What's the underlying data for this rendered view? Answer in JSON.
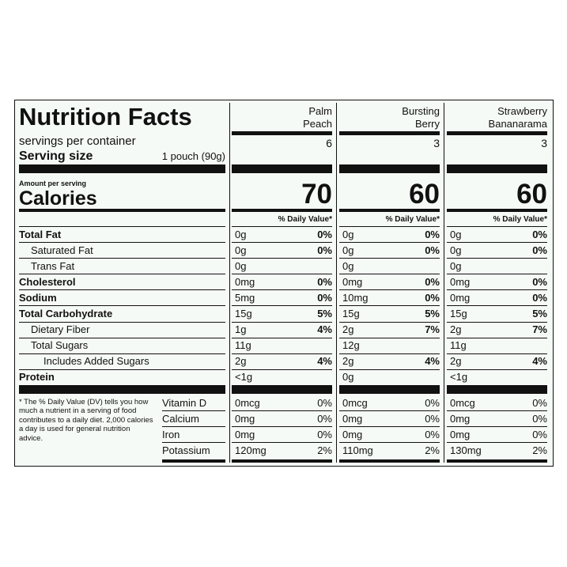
{
  "header": {
    "title": "Nutrition Facts",
    "servings_label": "servings per container",
    "serving_size_label": "Serving size",
    "serving_size": "1 pouch (90g)",
    "amount_label": "Amount per serving",
    "calories_label": "Calories",
    "dv_label": "% Daily Value*",
    "footnote": "* The % Daily Value (DV) tells you how much a nutrient in a serving of food contributes to a daily diet. 2,000 calories a day is used for general nutrition advice."
  },
  "nutrients": [
    {
      "label": "Total Fat",
      "style": "main"
    },
    {
      "label": "Saturated Fat",
      "style": "sub"
    },
    {
      "label": "Trans Fat",
      "style": "sub"
    },
    {
      "label": "Cholesterol",
      "style": "main"
    },
    {
      "label": "Sodium",
      "style": "main"
    },
    {
      "label": "Total Carbohydrate",
      "style": "main"
    },
    {
      "label": "Dietary Fiber",
      "style": "sub"
    },
    {
      "label": "Total Sugars",
      "style": "sub"
    },
    {
      "label": "Includes Added Sugars",
      "style": "subsub"
    },
    {
      "label": "Protein",
      "style": "main"
    }
  ],
  "vitamins": [
    "Vitamin D",
    "Calcium",
    "Iron",
    "Potassium"
  ],
  "products": [
    {
      "name": [
        "Palm",
        "Peach"
      ],
      "servings": 6,
      "calories": 70,
      "nutrients": [
        {
          "amount": "0g",
          "dv": "0%"
        },
        {
          "amount": "0g",
          "dv": "0%"
        },
        {
          "amount": "0g",
          "dv": null
        },
        {
          "amount": "0mg",
          "dv": "0%"
        },
        {
          "amount": "5mg",
          "dv": "0%"
        },
        {
          "amount": "15g",
          "dv": "5%"
        },
        {
          "amount": "1g",
          "dv": "4%"
        },
        {
          "amount": "11g",
          "dv": null
        },
        {
          "amount": "2g",
          "dv": "4%"
        },
        {
          "amount": "<1g",
          "dv": null
        }
      ],
      "vitamins": [
        {
          "amount": "0mcg",
          "dv": "0%"
        },
        {
          "amount": "0mg",
          "dv": "0%"
        },
        {
          "amount": "0mg",
          "dv": "0%"
        },
        {
          "amount": "120mg",
          "dv": "2%"
        }
      ]
    },
    {
      "name": [
        "Bursting",
        "Berry"
      ],
      "servings": 3,
      "calories": 60,
      "nutrients": [
        {
          "amount": "0g",
          "dv": "0%"
        },
        {
          "amount": "0g",
          "dv": "0%"
        },
        {
          "amount": "0g",
          "dv": null
        },
        {
          "amount": "0mg",
          "dv": "0%"
        },
        {
          "amount": "10mg",
          "dv": "0%"
        },
        {
          "amount": "15g",
          "dv": "5%"
        },
        {
          "amount": "2g",
          "dv": "7%"
        },
        {
          "amount": "12g",
          "dv": null
        },
        {
          "amount": "2g",
          "dv": "4%"
        },
        {
          "amount": "0g",
          "dv": null
        }
      ],
      "vitamins": [
        {
          "amount": "0mcg",
          "dv": "0%"
        },
        {
          "amount": "0mg",
          "dv": "0%"
        },
        {
          "amount": "0mg",
          "dv": "0%"
        },
        {
          "amount": "110mg",
          "dv": "2%"
        }
      ]
    },
    {
      "name": [
        "Strawberry",
        "Bananarama"
      ],
      "servings": 3,
      "calories": 60,
      "nutrients": [
        {
          "amount": "0g",
          "dv": "0%"
        },
        {
          "amount": "0g",
          "dv": "0%"
        },
        {
          "amount": "0g",
          "dv": null
        },
        {
          "amount": "0mg",
          "dv": "0%"
        },
        {
          "amount": "0mg",
          "dv": "0%"
        },
        {
          "amount": "15g",
          "dv": "5%"
        },
        {
          "amount": "2g",
          "dv": "7%"
        },
        {
          "amount": "11g",
          "dv": null
        },
        {
          "amount": "2g",
          "dv": "4%"
        },
        {
          "amount": "<1g",
          "dv": null
        }
      ],
      "vitamins": [
        {
          "amount": "0mcg",
          "dv": "0%"
        },
        {
          "amount": "0mg",
          "dv": "0%"
        },
        {
          "amount": "0mg",
          "dv": "0%"
        },
        {
          "amount": "130mg",
          "dv": "2%"
        }
      ]
    }
  ]
}
